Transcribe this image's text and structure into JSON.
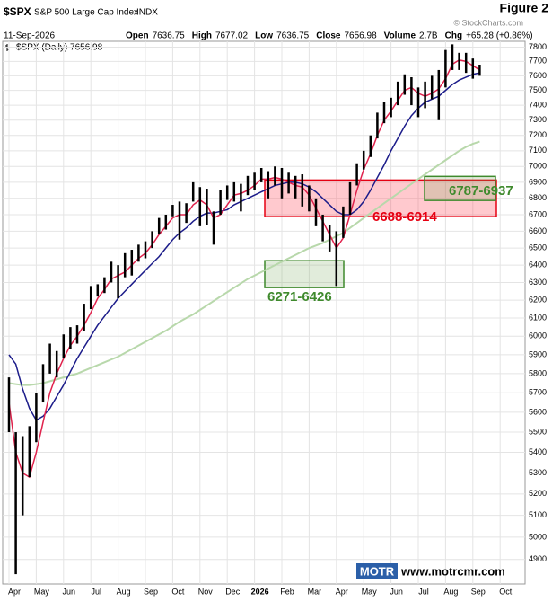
{
  "chart_data": {
    "type": "ohlc",
    "figure_label": "Figure 2",
    "header": {
      "symbol": "$SPX",
      "name": "S&P 500 Large Cap Index",
      "exchange": "INDX",
      "copyright": "© StockCharts.com",
      "date": "11-Sep-2026",
      "quote": [
        {
          "label": "Open",
          "text": "7636.75"
        },
        {
          "label": "High",
          "text": "7677.02"
        },
        {
          "label": "Low",
          "text": "7636.75"
        },
        {
          "label": "Close",
          "text": "7656.98"
        },
        {
          "label": "Volume",
          "text": "2.7B"
        },
        {
          "label": "Chg",
          "text": "+65.28 (+0.86%)"
        }
      ],
      "legend": "$SPX (Daily) 7656.98"
    },
    "log_scale": true,
    "grid": true,
    "bar_color": "#000000",
    "ylim": [
      4800,
      7880
    ],
    "yticks": [
      4900,
      5000,
      5100,
      5200,
      5300,
      5400,
      5500,
      5600,
      5700,
      5800,
      5900,
      6000,
      6100,
      6200,
      6300,
      6400,
      6500,
      6600,
      6700,
      6800,
      6900,
      7000,
      7100,
      7200,
      7300,
      7400,
      7500,
      7600,
      7700,
      7800
    ],
    "categories": [
      "Apr",
      null,
      null,
      null,
      "May",
      null,
      null,
      null,
      "Jun",
      null,
      null,
      null,
      "Jul",
      null,
      null,
      null,
      "Aug",
      null,
      null,
      null,
      "Sep",
      null,
      null,
      null,
      "Oct",
      null,
      null,
      null,
      "Nov",
      null,
      null,
      null,
      "Dec",
      null,
      null,
      null,
      "2026",
      null,
      null,
      null,
      "Feb",
      null,
      null,
      null,
      "Mar",
      null,
      null,
      null,
      "Apr",
      null,
      null,
      null,
      "May",
      null,
      null,
      null,
      "Jun",
      null,
      null,
      null,
      "Jul",
      null,
      null,
      null,
      "Aug",
      null,
      null,
      null,
      "Sep",
      null,
      null,
      null,
      "Oct",
      null,
      null,
      null
    ],
    "high": [
      5780,
      5500,
      5480,
      5530,
      5700,
      5850,
      5960,
      5920,
      6010,
      6050,
      6060,
      6180,
      6280,
      6290,
      6330,
      6420,
      6400,
      6470,
      6490,
      6520,
      6540,
      6600,
      6680,
      6700,
      6760,
      6780,
      6770,
      6900,
      6870,
      6860,
      6720,
      6850,
      6880,
      6900,
      6890,
      6940,
      6960,
      6990,
      6970,
      7000,
      6990,
      6960,
      6940,
      6950,
      6880,
      6800,
      6700,
      6640,
      6600,
      6750,
      6900,
      7020,
      7100,
      7200,
      7350,
      7420,
      7450,
      7560,
      7610,
      7590,
      7520,
      7560,
      7600,
      7640,
      7780,
      7820,
      7760,
      7760,
      7720,
      7677,
      null,
      null,
      null,
      null,
      null,
      null
    ],
    "low": [
      5500,
      4835,
      5100,
      5280,
      5450,
      5650,
      5800,
      5780,
      5880,
      5930,
      5960,
      6030,
      6150,
      6220,
      6240,
      6300,
      6210,
      6330,
      6340,
      6420,
      6440,
      6500,
      6580,
      6610,
      6690,
      6550,
      6650,
      6780,
      6630,
      6640,
      6520,
      6700,
      6790,
      6780,
      6720,
      6820,
      6850,
      6900,
      6800,
      6880,
      6800,
      6830,
      6800,
      6750,
      6720,
      6630,
      6540,
      6480,
      6280,
      6560,
      6700,
      6880,
      6980,
      7060,
      7180,
      7280,
      7320,
      7400,
      7470,
      7400,
      7320,
      7380,
      7440,
      7300,
      7520,
      7640,
      7640,
      7620,
      7580,
      7600,
      null,
      null,
      null,
      null,
      null,
      null
    ],
    "overlays": [
      {
        "color": "#b8d8ab",
        "values": [
          5750,
          5745,
          5740,
          5740,
          5745,
          5750,
          5760,
          5770,
          5780,
          5790,
          5800,
          5815,
          5830,
          5845,
          5860,
          5875,
          5890,
          5910,
          5930,
          5950,
          5970,
          5990,
          6010,
          6030,
          6055,
          6080,
          6100,
          6120,
          6145,
          6170,
          6195,
          6220,
          6245,
          6270,
          6295,
          6320,
          6340,
          6360,
          6380,
          6400,
          6420,
          6440,
          6460,
          6480,
          6500,
          6515,
          6530,
          6550,
          6570,
          6590,
          6620,
          6650,
          6680,
          6710,
          6740,
          6770,
          6800,
          6830,
          6860,
          6890,
          6920,
          6950,
          6980,
          7010,
          7040,
          7070,
          7100,
          7125,
          7145,
          7160,
          null,
          null,
          null,
          null,
          null,
          null
        ]
      },
      {
        "color": "#1c1c8a",
        "values": [
          5900,
          5850,
          5720,
          5620,
          5560,
          5580,
          5620,
          5680,
          5740,
          5810,
          5880,
          5940,
          6000,
          6060,
          6110,
          6160,
          6210,
          6250,
          6290,
          6330,
          6370,
          6410,
          6450,
          6500,
          6550,
          6590,
          6620,
          6660,
          6690,
          6710,
          6710,
          6720,
          6730,
          6760,
          6780,
          6800,
          6820,
          6840,
          6860,
          6880,
          6890,
          6900,
          6900,
          6890,
          6870,
          6840,
          6800,
          6760,
          6720,
          6700,
          6700,
          6730,
          6780,
          6850,
          6930,
          7010,
          7100,
          7180,
          7260,
          7330,
          7380,
          7420,
          7440,
          7460,
          7500,
          7540,
          7570,
          7590,
          7610,
          7620,
          null,
          null,
          null,
          null,
          null,
          null
        ]
      },
      {
        "color": "#e0224c",
        "values": [
          5650,
          5400,
          5300,
          5280,
          5400,
          5550,
          5700,
          5800,
          5880,
          5950,
          6000,
          6060,
          6130,
          6210,
          6260,
          6320,
          6340,
          6360,
          6400,
          6440,
          6470,
          6520,
          6580,
          6630,
          6680,
          6700,
          6700,
          6760,
          6790,
          6760,
          6680,
          6700,
          6760,
          6820,
          6830,
          6850,
          6880,
          6920,
          6920,
          6930,
          6920,
          6900,
          6880,
          6870,
          6820,
          6740,
          6660,
          6580,
          6500,
          6560,
          6700,
          6850,
          6980,
          7080,
          7200,
          7300,
          7360,
          7430,
          7500,
          7520,
          7480,
          7460,
          7480,
          7510,
          7580,
          7680,
          7710,
          7700,
          7670,
          7640,
          null,
          null,
          null,
          null,
          null,
          null
        ]
      }
    ],
    "annotations": [
      {
        "text": "6688-6914",
        "range": [
          6688,
          6914
        ],
        "color": "#e60012"
      },
      {
        "text": "6787-6937",
        "range": [
          6787,
          6937
        ],
        "color": "#3f8a2d"
      },
      {
        "text": "6271-6426",
        "range": [
          6271,
          6426
        ],
        "color": "#3f8a2d"
      }
    ],
    "watermark": {
      "logo": "MOTR",
      "url": "www.motrcmr.com"
    }
  }
}
